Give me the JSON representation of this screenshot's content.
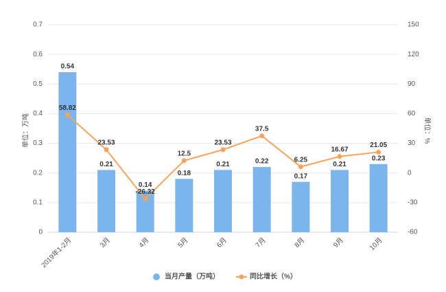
{
  "chart_data": {
    "type": "bar",
    "categories": [
      "2019年1-2月",
      "3月",
      "4月",
      "5月",
      "6月",
      "7月",
      "8月",
      "9月",
      "10月"
    ],
    "series": [
      {
        "name": "当月产量（万吨）",
        "type": "bar",
        "color": "#7cb5ec",
        "values": [
          0.54,
          0.21,
          0.14,
          0.18,
          0.21,
          0.22,
          0.17,
          0.21,
          0.23
        ]
      },
      {
        "name": "同比增长（%）",
        "type": "line",
        "axis": "y2",
        "color": "#f7a35c",
        "values": [
          58.82,
          23.53,
          -26.32,
          12.5,
          23.53,
          37.5,
          6.25,
          16.67,
          21.05
        ]
      }
    ],
    "ylabel": "单位：万吨",
    "y2label": "单位：%",
    "ylim": [
      0,
      0.7
    ],
    "yticks": [
      0,
      0.1,
      0.2,
      0.3,
      0.4,
      0.5,
      0.6,
      0.7
    ],
    "y2lim": [
      -60,
      150
    ],
    "y2ticks": [
      -60,
      -30,
      0,
      30,
      60,
      90,
      120,
      150
    ],
    "grid": true,
    "legend": "bottom"
  }
}
